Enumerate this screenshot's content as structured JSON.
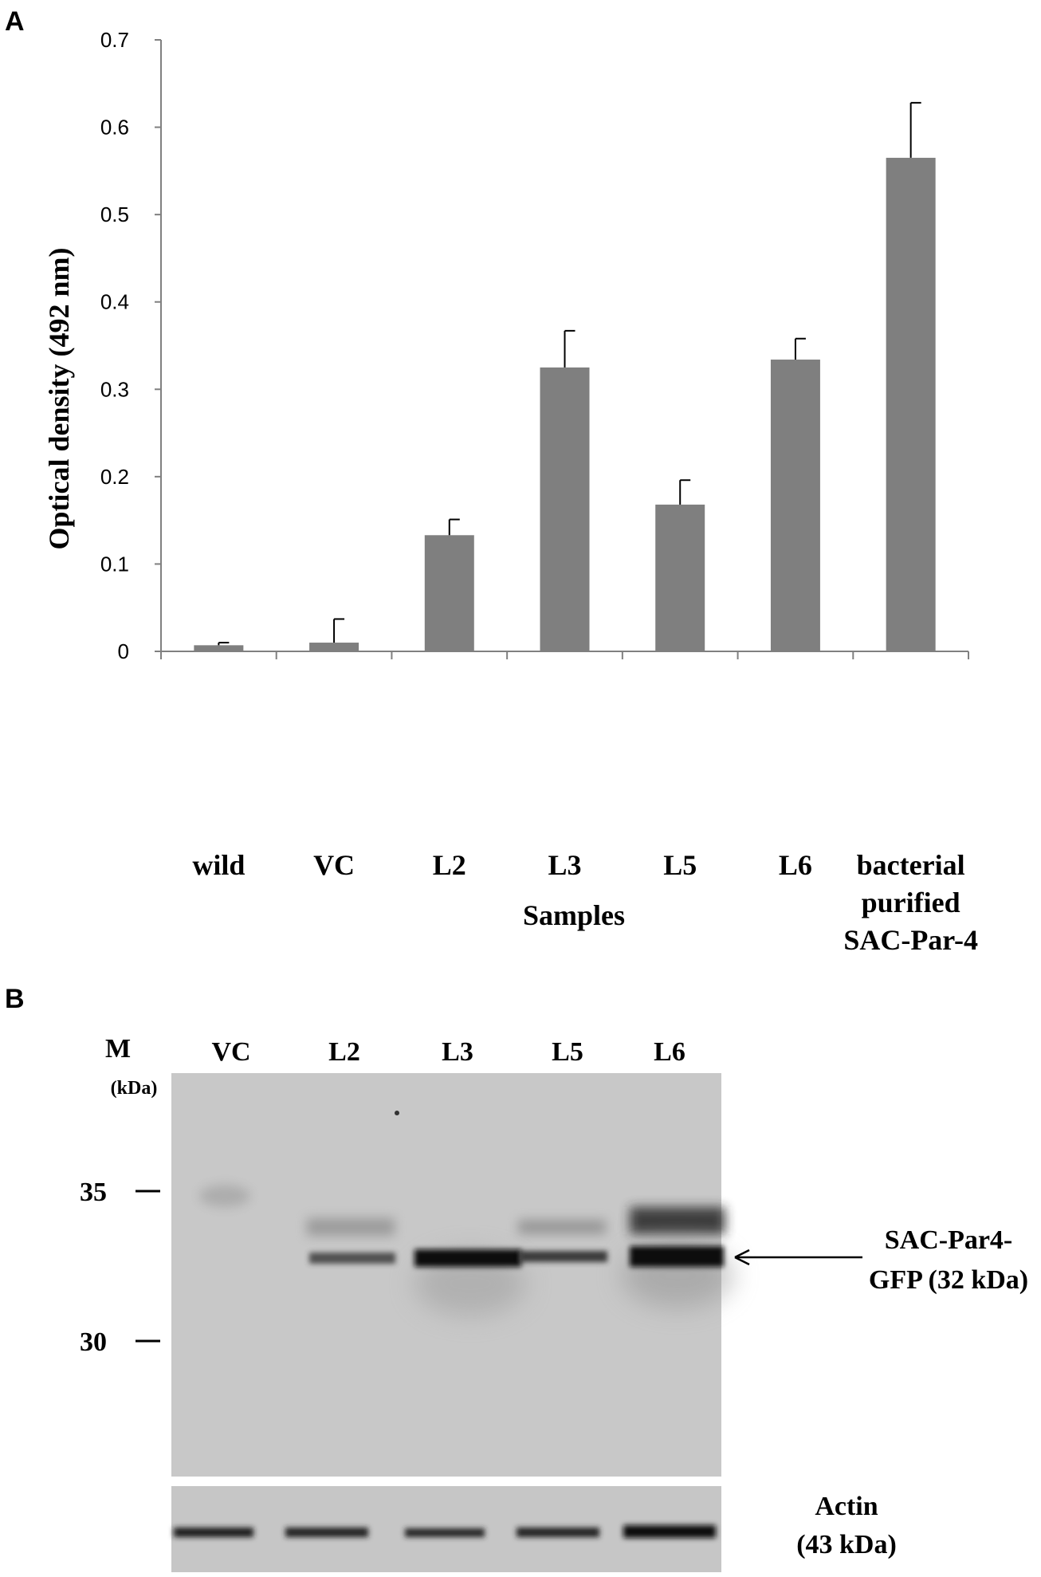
{
  "panel_a": {
    "letter": "A",
    "chart_data": {
      "type": "bar",
      "categories": [
        "wild",
        "VC",
        "L2",
        "L3",
        "L5",
        "L6",
        "bacterial purified SAC-Par-4"
      ],
      "category_lines": [
        [
          "wild"
        ],
        [
          "VC"
        ],
        [
          "L2"
        ],
        [
          "L3"
        ],
        [
          "L5"
        ],
        [
          "L6"
        ],
        [
          "bacterial",
          "purified",
          "SAC-Par-4"
        ]
      ],
      "values": [
        0.007,
        0.01,
        0.133,
        0.325,
        0.168,
        0.334,
        0.565
      ],
      "errors": [
        0.003,
        0.027,
        0.018,
        0.042,
        0.028,
        0.024,
        0.063
      ],
      "xlabel": "Samples",
      "ylabel": "Optical density (492 nm)",
      "ylim": [
        0,
        0.7
      ],
      "yticks": [
        0,
        0.1,
        0.2,
        0.3,
        0.4,
        0.5,
        0.6,
        0.7
      ],
      "ytick_labels": [
        "0",
        "0.1",
        "0.2",
        "0.3",
        "0.4",
        "0.5",
        "0.6",
        "0.7"
      ],
      "bar_color": "#7f7f7f",
      "grid": false
    }
  },
  "panel_b": {
    "letter": "B",
    "marker_label": "M",
    "marker_unit": "(kDa)",
    "lanes": [
      "VC",
      "L2",
      "L3",
      "L5",
      "L6"
    ],
    "markers": [
      "35",
      "30"
    ],
    "target_label_lines": [
      "SAC-Par4-",
      "GFP (32 kDa)"
    ],
    "actin_label_lines": [
      "Actin",
      "(43 kDa)"
    ]
  }
}
